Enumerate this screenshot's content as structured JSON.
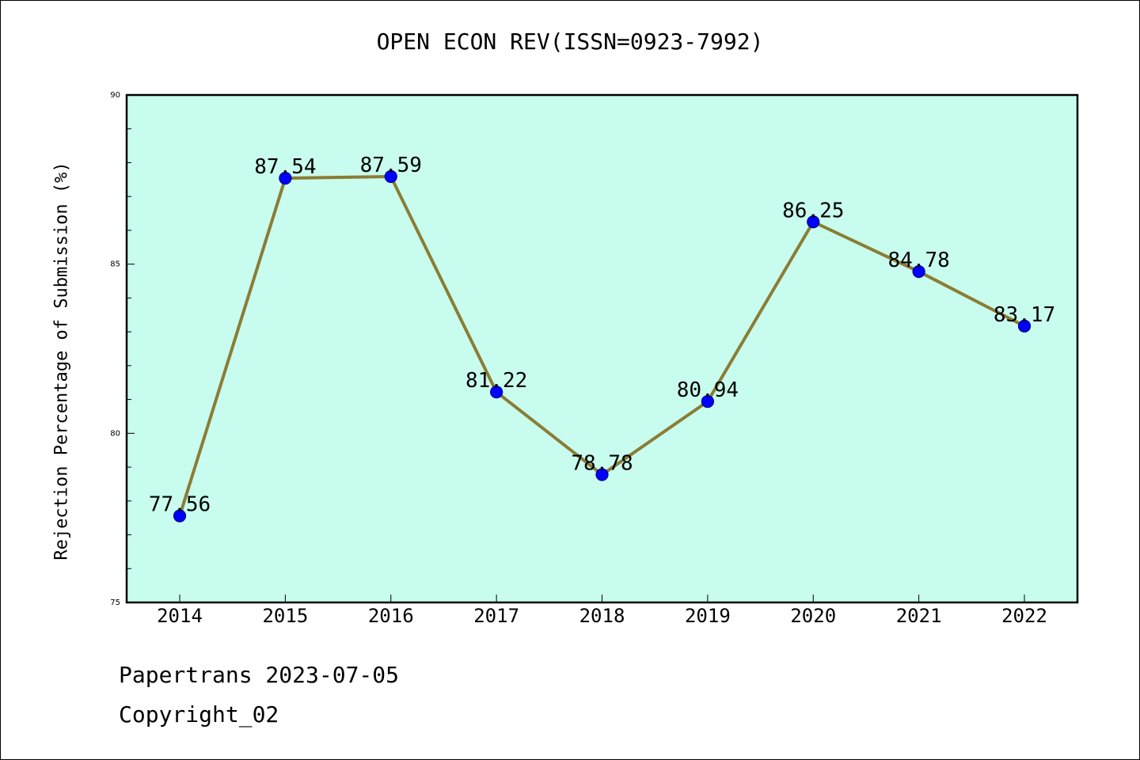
{
  "header": {
    "title": "OPEN ECON REV(ISSN=0923-7992)"
  },
  "footer": {
    "line1": "Papertrans 2023-07-05",
    "line2": "Copyright_02"
  },
  "chart_data": {
    "type": "line",
    "title": "OPEN ECON REV(ISSN=0923-7992)",
    "xlabel": "",
    "ylabel": "Rejection Percentage of Submission (%)",
    "categories": [
      "2014",
      "2015",
      "2016",
      "2017",
      "2018",
      "2019",
      "2020",
      "2021",
      "2022"
    ],
    "values": [
      77.56,
      87.54,
      87.59,
      81.22,
      78.78,
      80.94,
      86.25,
      84.78,
      83.17
    ],
    "data_labels": [
      "77.56",
      "87.54",
      "87.59",
      "81.22",
      "78.78",
      "80.94",
      "86.25",
      "84.78",
      "83.17"
    ],
    "ylim": [
      75,
      90
    ],
    "yticks": [
      75,
      80,
      85,
      90
    ],
    "grid": false,
    "colors": {
      "background": "#c8fcee",
      "line": "#8b7d35",
      "marker": "#0000ff",
      "marker_edge": "#00008b"
    }
  }
}
